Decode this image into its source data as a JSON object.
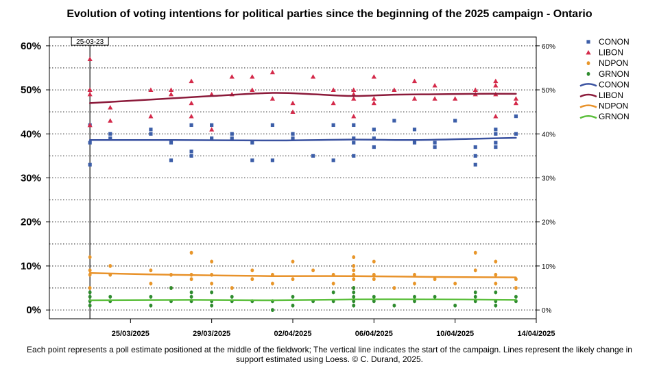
{
  "chart_data": {
    "type": "scatter",
    "title": "Evolution of voting intentions for political parties since the beginning of the 2025 campaign - Ontario",
    "caption": "Each point represents a poll estimate positioned at the middle of the fieldwork; The vertical line indicates the start of the campaign. Lines represent the likely change in support estimated using Loess.  © C. Durand, 2025.",
    "x_type": "date",
    "xlim": [
      "2025-03-21",
      "2025-04-14"
    ],
    "x_ticks": [
      "25/03/2025",
      "29/03/2025",
      "02/04/2025",
      "06/04/2025",
      "10/04/2025",
      "14/04/2025"
    ],
    "y_ticks_left": [
      "0%",
      "10%",
      "20%",
      "30%",
      "40%",
      "50%",
      "60%"
    ],
    "y_ticks_right": [
      "0%",
      "10%",
      "20%",
      "30%",
      "40%",
      "50%",
      "60%"
    ],
    "ylim": [
      -2,
      62
    ],
    "grid": "dotted horizontal",
    "legend_position": "top-right",
    "campaign_start": {
      "date": "2025-03-23",
      "label": "25-03-23"
    },
    "series": [
      {
        "name": "CONON",
        "kind": "points",
        "color": "#3c5ea8",
        "marker": "square",
        "points": [
          [
            "2025-03-23",
            33
          ],
          [
            "2025-03-23",
            38
          ],
          [
            "2025-03-23",
            42
          ],
          [
            "2025-03-24",
            39
          ],
          [
            "2025-03-24",
            40
          ],
          [
            "2025-03-26",
            41
          ],
          [
            "2025-03-26",
            40
          ],
          [
            "2025-03-27",
            38
          ],
          [
            "2025-03-27",
            34
          ],
          [
            "2025-03-28",
            42
          ],
          [
            "2025-03-28",
            36
          ],
          [
            "2025-03-28",
            35
          ],
          [
            "2025-03-29",
            39
          ],
          [
            "2025-03-29",
            42
          ],
          [
            "2025-03-30",
            39
          ],
          [
            "2025-03-30",
            40
          ],
          [
            "2025-03-31",
            34
          ],
          [
            "2025-03-31",
            38
          ],
          [
            "2025-04-01",
            42
          ],
          [
            "2025-04-01",
            34
          ],
          [
            "2025-04-02",
            39
          ],
          [
            "2025-04-02",
            40
          ],
          [
            "2025-04-03",
            35
          ],
          [
            "2025-04-04",
            42
          ],
          [
            "2025-04-04",
            34
          ],
          [
            "2025-04-05",
            42
          ],
          [
            "2025-04-05",
            38
          ],
          [
            "2025-04-05",
            35
          ],
          [
            "2025-04-05",
            39
          ],
          [
            "2025-04-06",
            41
          ],
          [
            "2025-04-06",
            37
          ],
          [
            "2025-04-06",
            39
          ],
          [
            "2025-04-07",
            43
          ],
          [
            "2025-04-08",
            41
          ],
          [
            "2025-04-08",
            38
          ],
          [
            "2025-04-09",
            38
          ],
          [
            "2025-04-09",
            37
          ],
          [
            "2025-04-10",
            43
          ],
          [
            "2025-04-11",
            37
          ],
          [
            "2025-04-11",
            35
          ],
          [
            "2025-04-11",
            33
          ],
          [
            "2025-04-12",
            41
          ],
          [
            "2025-04-12",
            38
          ],
          [
            "2025-04-12",
            37
          ],
          [
            "2025-04-12",
            40
          ],
          [
            "2025-04-13",
            44
          ],
          [
            "2025-04-13",
            40
          ]
        ]
      },
      {
        "name": "LIBON",
        "kind": "points",
        "color": "#d42a4a",
        "marker": "triangle",
        "points": [
          [
            "2025-03-23",
            57
          ],
          [
            "2025-03-23",
            50
          ],
          [
            "2025-03-23",
            49
          ],
          [
            "2025-03-23",
            42
          ],
          [
            "2025-03-24",
            46
          ],
          [
            "2025-03-24",
            43
          ],
          [
            "2025-03-26",
            50
          ],
          [
            "2025-03-26",
            44
          ],
          [
            "2025-03-27",
            50
          ],
          [
            "2025-03-27",
            49
          ],
          [
            "2025-03-28",
            52
          ],
          [
            "2025-03-28",
            47
          ],
          [
            "2025-03-28",
            44
          ],
          [
            "2025-03-29",
            49
          ],
          [
            "2025-03-29",
            41
          ],
          [
            "2025-03-30",
            53
          ],
          [
            "2025-03-30",
            49
          ],
          [
            "2025-03-31",
            53
          ],
          [
            "2025-03-31",
            50
          ],
          [
            "2025-04-01",
            54
          ],
          [
            "2025-04-01",
            48
          ],
          [
            "2025-04-02",
            47
          ],
          [
            "2025-04-02",
            45
          ],
          [
            "2025-04-03",
            53
          ],
          [
            "2025-04-04",
            50
          ],
          [
            "2025-04-04",
            47
          ],
          [
            "2025-04-05",
            50
          ],
          [
            "2025-04-05",
            49
          ],
          [
            "2025-04-05",
            48
          ],
          [
            "2025-04-05",
            44
          ],
          [
            "2025-04-06",
            53
          ],
          [
            "2025-04-06",
            48
          ],
          [
            "2025-04-06",
            47
          ],
          [
            "2025-04-07",
            50
          ],
          [
            "2025-04-08",
            52
          ],
          [
            "2025-04-08",
            48
          ],
          [
            "2025-04-09",
            51
          ],
          [
            "2025-04-09",
            48
          ],
          [
            "2025-04-10",
            48
          ],
          [
            "2025-04-11",
            50
          ],
          [
            "2025-04-11",
            49
          ],
          [
            "2025-04-12",
            52
          ],
          [
            "2025-04-12",
            51
          ],
          [
            "2025-04-12",
            49
          ],
          [
            "2025-04-12",
            44
          ],
          [
            "2025-04-13",
            48
          ],
          [
            "2025-04-13",
            47
          ]
        ]
      },
      {
        "name": "NDPON",
        "kind": "points",
        "color": "#e8962a",
        "marker": "circle",
        "points": [
          [
            "2025-03-23",
            12
          ],
          [
            "2025-03-23",
            9
          ],
          [
            "2025-03-23",
            8
          ],
          [
            "2025-03-23",
            5
          ],
          [
            "2025-03-24",
            10
          ],
          [
            "2025-03-24",
            8
          ],
          [
            "2025-03-26",
            9
          ],
          [
            "2025-03-26",
            6
          ],
          [
            "2025-03-27",
            8
          ],
          [
            "2025-03-27",
            5
          ],
          [
            "2025-03-28",
            13
          ],
          [
            "2025-03-28",
            8
          ],
          [
            "2025-03-28",
            7
          ],
          [
            "2025-03-29",
            11
          ],
          [
            "2025-03-29",
            8
          ],
          [
            "2025-03-29",
            6
          ],
          [
            "2025-03-30",
            5
          ],
          [
            "2025-03-31",
            9
          ],
          [
            "2025-03-31",
            7
          ],
          [
            "2025-04-01",
            8
          ],
          [
            "2025-04-01",
            6
          ],
          [
            "2025-04-02",
            11
          ],
          [
            "2025-04-02",
            7
          ],
          [
            "2025-04-03",
            9
          ],
          [
            "2025-04-04",
            8
          ],
          [
            "2025-04-04",
            6
          ],
          [
            "2025-04-05",
            12
          ],
          [
            "2025-04-05",
            10
          ],
          [
            "2025-04-05",
            9
          ],
          [
            "2025-04-05",
            8
          ],
          [
            "2025-04-05",
            7
          ],
          [
            "2025-04-05",
            5
          ],
          [
            "2025-04-06",
            11
          ],
          [
            "2025-04-06",
            8
          ],
          [
            "2025-04-06",
            7
          ],
          [
            "2025-04-07",
            5
          ],
          [
            "2025-04-08",
            8
          ],
          [
            "2025-04-08",
            6
          ],
          [
            "2025-04-09",
            7
          ],
          [
            "2025-04-10",
            6
          ],
          [
            "2025-04-11",
            13
          ],
          [
            "2025-04-11",
            9
          ],
          [
            "2025-04-12",
            11
          ],
          [
            "2025-04-12",
            8
          ],
          [
            "2025-04-12",
            6
          ],
          [
            "2025-04-13",
            7
          ],
          [
            "2025-04-13",
            5
          ]
        ]
      },
      {
        "name": "GRNON",
        "kind": "points",
        "color": "#2e8b2e",
        "marker": "circle",
        "points": [
          [
            "2025-03-23",
            4
          ],
          [
            "2025-03-23",
            3
          ],
          [
            "2025-03-23",
            2
          ],
          [
            "2025-03-23",
            1
          ],
          [
            "2025-03-24",
            3
          ],
          [
            "2025-03-24",
            2
          ],
          [
            "2025-03-26",
            3
          ],
          [
            "2025-03-26",
            1
          ],
          [
            "2025-03-27",
            5
          ],
          [
            "2025-03-27",
            2
          ],
          [
            "2025-03-28",
            4
          ],
          [
            "2025-03-28",
            3
          ],
          [
            "2025-03-28",
            2
          ],
          [
            "2025-03-29",
            4
          ],
          [
            "2025-03-29",
            2
          ],
          [
            "2025-03-29",
            1
          ],
          [
            "2025-03-30",
            3
          ],
          [
            "2025-03-30",
            2
          ],
          [
            "2025-03-31",
            2
          ],
          [
            "2025-04-01",
            2
          ],
          [
            "2025-04-01",
            0
          ],
          [
            "2025-04-02",
            3
          ],
          [
            "2025-04-02",
            1
          ],
          [
            "2025-04-03",
            2
          ],
          [
            "2025-04-04",
            4
          ],
          [
            "2025-04-04",
            2
          ],
          [
            "2025-04-05",
            5
          ],
          [
            "2025-04-05",
            4
          ],
          [
            "2025-04-05",
            3
          ],
          [
            "2025-04-05",
            2
          ],
          [
            "2025-04-05",
            1
          ],
          [
            "2025-04-06",
            3
          ],
          [
            "2025-04-06",
            2
          ],
          [
            "2025-04-07",
            1
          ],
          [
            "2025-04-08",
            3
          ],
          [
            "2025-04-08",
            2
          ],
          [
            "2025-04-09",
            3
          ],
          [
            "2025-04-10",
            1
          ],
          [
            "2025-04-11",
            4
          ],
          [
            "2025-04-11",
            3
          ],
          [
            "2025-04-11",
            2
          ],
          [
            "2025-04-12",
            4
          ],
          [
            "2025-04-12",
            2
          ],
          [
            "2025-04-12",
            1
          ],
          [
            "2025-04-13",
            3
          ],
          [
            "2025-04-13",
            2
          ]
        ]
      },
      {
        "name": "CONON",
        "kind": "line",
        "color": "#3a52a0",
        "points": [
          [
            "2025-03-23",
            38.6
          ],
          [
            "2025-03-27",
            38.6
          ],
          [
            "2025-04-01",
            38.5
          ],
          [
            "2025-04-05",
            38.7
          ],
          [
            "2025-04-08",
            38.6
          ],
          [
            "2025-04-11",
            38.9
          ],
          [
            "2025-04-13",
            39.1
          ]
        ]
      },
      {
        "name": "LIBON",
        "kind": "line",
        "color": "#8b1a3a",
        "points": [
          [
            "2025-03-23",
            47.0
          ],
          [
            "2025-03-26",
            47.8
          ],
          [
            "2025-03-29",
            48.6
          ],
          [
            "2025-04-01",
            49.3
          ],
          [
            "2025-04-03",
            49.0
          ],
          [
            "2025-04-05",
            48.6
          ],
          [
            "2025-04-07",
            48.9
          ],
          [
            "2025-04-09",
            49.0
          ],
          [
            "2025-04-11",
            49.1
          ],
          [
            "2025-04-13",
            49.1
          ]
        ]
      },
      {
        "name": "NDPON",
        "kind": "line",
        "color": "#e8922a",
        "points": [
          [
            "2025-03-23",
            8.4
          ],
          [
            "2025-03-27",
            8.0
          ],
          [
            "2025-04-01",
            7.7
          ],
          [
            "2025-04-05",
            7.7
          ],
          [
            "2025-04-09",
            7.5
          ],
          [
            "2025-04-13",
            7.4
          ]
        ]
      },
      {
        "name": "GRNON",
        "kind": "line",
        "color": "#5cbf3c",
        "points": [
          [
            "2025-03-23",
            2.2
          ],
          [
            "2025-03-28",
            2.3
          ],
          [
            "2025-04-01",
            2.2
          ],
          [
            "2025-04-05",
            2.4
          ],
          [
            "2025-04-09",
            2.4
          ],
          [
            "2025-04-13",
            2.3
          ]
        ]
      }
    ]
  }
}
